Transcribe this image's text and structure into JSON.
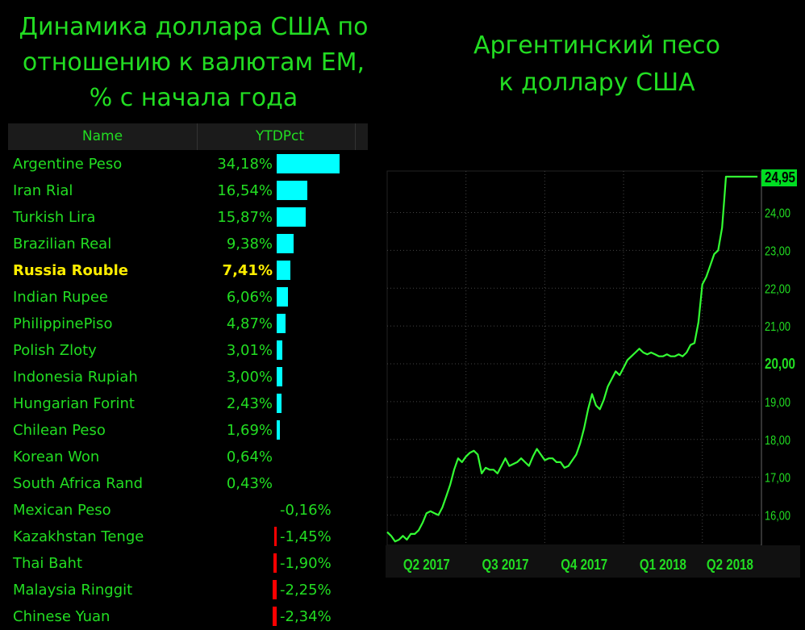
{
  "left_title": [
    "Динамика доллара США по",
    "отношению к валютам ЕМ,",
    "% с начала года"
  ],
  "right_title": [
    "Аргентинский песо",
    "к доллару США"
  ],
  "colors": {
    "text": "#22dd22",
    "bar_positive": "#00ffff",
    "bar_negative": "#ff0000",
    "highlight": "#ffee00",
    "line": "#33ff33"
  },
  "table": {
    "headers": {
      "name": "Name",
      "ytd": "YTDPct"
    },
    "rows": [
      {
        "name": "Argentine Peso",
        "pct": "34,18%",
        "value": 34.18
      },
      {
        "name": "Iran Rial",
        "pct": "16,54%",
        "value": 16.54
      },
      {
        "name": "Turkish Lira",
        "pct": "15,87%",
        "value": 15.87
      },
      {
        "name": "Brazilian Real",
        "pct": "9,38%",
        "value": 9.38
      },
      {
        "name": "Russia Rouble",
        "pct": "7,41%",
        "value": 7.41,
        "highlight": true
      },
      {
        "name": "Indian Rupee",
        "pct": "6,06%",
        "value": 6.06
      },
      {
        "name": "PhilippinePiso",
        "pct": "4,87%",
        "value": 4.87
      },
      {
        "name": "Polish Zloty",
        "pct": "3,01%",
        "value": 3.01
      },
      {
        "name": "Indonesia Rupiah",
        "pct": "3,00%",
        "value": 3.0
      },
      {
        "name": "Hungarian Forint",
        "pct": "2,43%",
        "value": 2.43
      },
      {
        "name": "Chilean Peso",
        "pct": "1,69%",
        "value": 1.69
      },
      {
        "name": "Korean Won",
        "pct": "0,64%",
        "value": 0.64
      },
      {
        "name": "South Africa Rand",
        "pct": "0,43%",
        "value": 0.43
      },
      {
        "name": "Mexican Peso",
        "pct": "-0,16%",
        "value": -0.16
      },
      {
        "name": "Kazakhstan Tenge",
        "pct": "-1,45%",
        "value": -1.45
      },
      {
        "name": "Thai Baht",
        "pct": "-1,90%",
        "value": -1.9
      },
      {
        "name": "Malaysia Ringgit",
        "pct": "-2,25%",
        "value": -2.25
      },
      {
        "name": "Chinese Yuan",
        "pct": "-2,34%",
        "value": -2.34
      }
    ]
  },
  "chart_data": [
    {
      "type": "bar",
      "categories": [
        "Argentine Peso",
        "Iran Rial",
        "Turkish Lira",
        "Brazilian Real",
        "Russia Rouble",
        "Indian Rupee",
        "PhilippinePiso",
        "Polish Zloty",
        "Indonesia Rupiah",
        "Hungarian Forint",
        "Chilean Peso",
        "Korean Won",
        "South Africa Rand",
        "Mexican Peso",
        "Kazakhstan Tenge",
        "Thai Baht",
        "Malaysia Ringgit",
        "Chinese Yuan"
      ],
      "values": [
        34.18,
        16.54,
        15.87,
        9.38,
        7.41,
        6.06,
        4.87,
        3.01,
        3.0,
        2.43,
        1.69,
        0.64,
        0.43,
        -0.16,
        -1.45,
        -1.9,
        -2.25,
        -2.34
      ],
      "title": "Динамика доллара США по отношению к валютам ЕМ, % с начала года",
      "orientation": "horizontal"
    },
    {
      "type": "line",
      "title": "Аргентинский песо к доллару США",
      "x_ticks": [
        "Q2 2017",
        "Q3 2017",
        "Q4 2017",
        "Q1 2018",
        "Q2 2018"
      ],
      "x_tick_positions": [
        0.5,
        1.5,
        2.5,
        3.5,
        4.35
      ],
      "y_ticks": [
        "16,00",
        "17,00",
        "18,00",
        "19,00",
        "20,00",
        "21,00",
        "22,00",
        "23,00",
        "24,00"
      ],
      "y_tick_values": [
        16,
        17,
        18,
        19,
        20,
        21,
        22,
        23,
        24
      ],
      "bold_tick": "20,00",
      "last_value_label": "24,95",
      "ylim": [
        15.2,
        25.1
      ],
      "xlim": [
        0,
        4.75
      ],
      "series": [
        {
          "x": [
            0.0,
            0.05,
            0.1,
            0.15,
            0.2,
            0.25,
            0.3,
            0.35,
            0.4,
            0.45,
            0.5,
            0.55,
            0.6,
            0.65,
            0.7,
            0.75,
            0.8,
            0.85,
            0.9,
            0.95,
            1.0,
            1.05,
            1.1,
            1.15,
            1.2,
            1.25,
            1.3,
            1.35,
            1.4,
            1.45,
            1.5,
            1.55,
            1.6,
            1.65,
            1.7,
            1.75,
            1.8,
            1.85,
            1.9,
            1.95,
            2.0,
            2.05,
            2.1,
            2.15,
            2.2,
            2.25,
            2.3,
            2.35,
            2.4,
            2.45,
            2.5,
            2.55,
            2.6,
            2.65,
            2.7,
            2.75,
            2.8,
            2.85,
            2.9,
            2.95,
            3.0,
            3.05,
            3.1,
            3.15,
            3.2,
            3.25,
            3.3,
            3.35,
            3.4,
            3.45,
            3.5,
            3.55,
            3.6,
            3.65,
            3.7,
            3.75,
            3.8,
            3.85,
            3.9,
            3.95,
            4.0,
            4.05,
            4.1,
            4.15,
            4.2,
            4.25,
            4.28,
            4.3,
            4.33,
            4.36,
            4.4,
            4.45,
            4.5,
            4.55,
            4.58,
            4.62,
            4.66,
            4.7
          ],
          "y": [
            15.55,
            15.45,
            15.3,
            15.35,
            15.45,
            15.35,
            15.5,
            15.5,
            15.6,
            15.8,
            16.05,
            16.1,
            16.05,
            16.0,
            16.2,
            16.5,
            16.8,
            17.2,
            17.5,
            17.4,
            17.55,
            17.65,
            17.7,
            17.6,
            17.1,
            17.25,
            17.2,
            17.2,
            17.1,
            17.3,
            17.5,
            17.3,
            17.35,
            17.4,
            17.5,
            17.4,
            17.3,
            17.55,
            17.75,
            17.6,
            17.45,
            17.5,
            17.5,
            17.4,
            17.4,
            17.25,
            17.3,
            17.45,
            17.6,
            17.9,
            18.3,
            18.8,
            19.2,
            18.9,
            18.8,
            19.05,
            19.4,
            19.6,
            19.8,
            19.7,
            19.9,
            20.1,
            20.2,
            20.3,
            20.4,
            20.3,
            20.25,
            20.3,
            20.25,
            20.2,
            20.2,
            20.25,
            20.2,
            20.2,
            20.25,
            20.2,
            20.3,
            20.5,
            20.55,
            21.1,
            22.1,
            22.3,
            22.6,
            22.9,
            23.0,
            23.6,
            24.4,
            24.95,
            24.95,
            24.95,
            24.95,
            24.95,
            24.95,
            24.95,
            24.95,
            24.95,
            24.95,
            24.95
          ]
        }
      ]
    }
  ]
}
